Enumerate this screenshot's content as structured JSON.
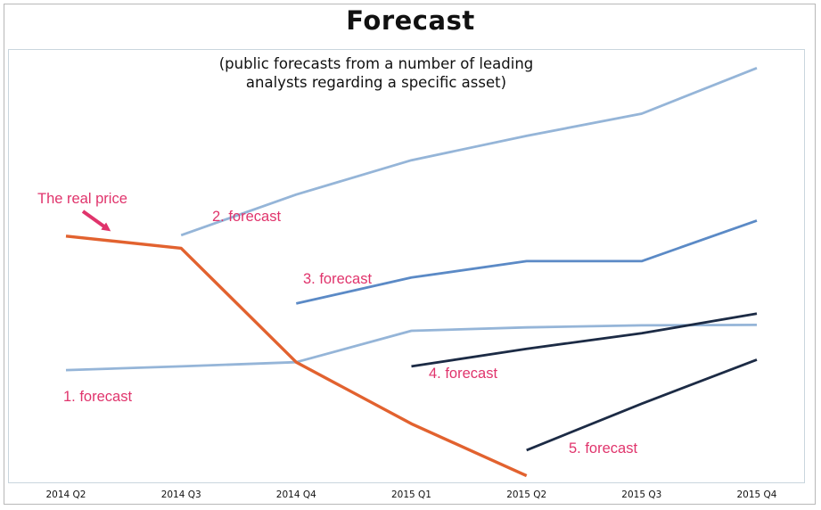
{
  "chart_data": {
    "type": "line",
    "title": "Forecast",
    "subtitle": "(public forecasts from a number of leading analysts regarding a specific asset)",
    "xlabel": "",
    "ylabel": "",
    "categories": [
      "2014 Q2",
      "2014 Q3",
      "2014 Q4",
      "2015 Q1",
      "2015 Q2",
      "2015 Q3",
      "2015 Q4"
    ],
    "ylim": [
      0,
      100
    ],
    "grid": false,
    "series": [
      {
        "name": "The real price",
        "color": "#e2622f",
        "values": [
          57.5,
          54.6,
          27.4,
          12.7,
          0.3,
          null,
          null
        ]
      },
      {
        "name": "1. forecast",
        "color": "#95b5d8",
        "values": [
          25.5,
          26.4,
          27.4,
          34.9,
          35.7,
          36.2,
          36.3
        ]
      },
      {
        "name": "2. forecast",
        "color": "#95b5d8",
        "values": [
          null,
          57.7,
          67.4,
          75.6,
          81.4,
          86.7,
          97.6
        ]
      },
      {
        "name": "3. forecast",
        "color": "#5b8ac6",
        "values": [
          null,
          null,
          41.4,
          47.6,
          51.5,
          51.5,
          61.2
        ]
      },
      {
        "name": "4. forecast",
        "color": "#1c2b45",
        "values": [
          null,
          null,
          null,
          26.4,
          30.6,
          34.3,
          39.0
        ]
      },
      {
        "name": "5. forecast",
        "color": "#1c2b45",
        "values": [
          null,
          null,
          null,
          null,
          6.4,
          17.5,
          28.0
        ]
      }
    ],
    "annotations": [
      {
        "text": "The real price",
        "arrow": true
      },
      {
        "text": "1. forecast"
      },
      {
        "text": "2. forecast"
      },
      {
        "text": "3. forecast"
      },
      {
        "text": "4. forecast"
      },
      {
        "text": "5. forecast"
      }
    ]
  }
}
